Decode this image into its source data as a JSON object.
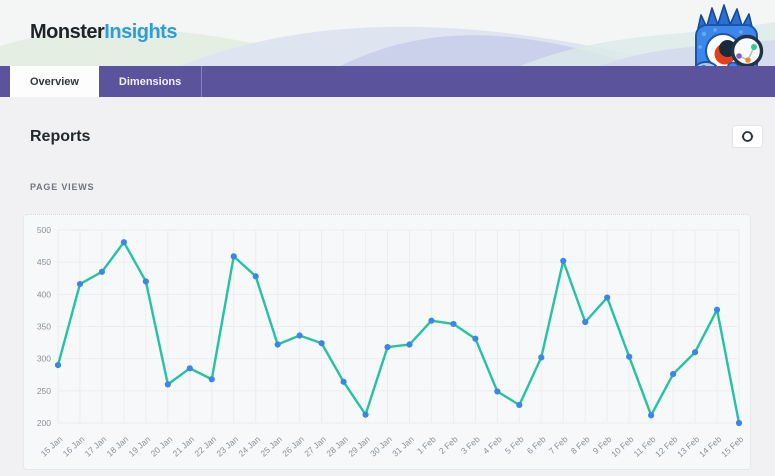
{
  "brand": {
    "name_primary": "Monster",
    "name_secondary": "Insights"
  },
  "nav": {
    "tabs": [
      {
        "label": "Overview",
        "active": true
      },
      {
        "label": "Dimensions",
        "active": false
      }
    ]
  },
  "page": {
    "title": "Reports"
  },
  "toolbar": {
    "refresh_icon": "refresh-circular-arrows"
  },
  "colors": {
    "nav_purple": "#5b539b",
    "logo_blue": "#2f9dd8",
    "line_teal": "#25c3a0",
    "point_blue": "#3a87e8",
    "grid_line": "#ebedef",
    "tick_text": "#8b919b"
  },
  "chart_data": {
    "type": "line",
    "title": "PAGE VIEWS",
    "xlabel": "",
    "ylabel": "",
    "legend": "none",
    "grid": true,
    "ylim": [
      200,
      500
    ],
    "ytick_step": 50,
    "categories": [
      "15 Jan",
      "16 Jan",
      "17 Jan",
      "18 Jan",
      "19 Jan",
      "20 Jan",
      "21 Jan",
      "22 Jan",
      "23 Jan",
      "24 Jan",
      "25 Jan",
      "26 Jan",
      "27 Jan",
      "28 Jan",
      "29 Jan",
      "30 Jan",
      "31 Jan",
      "1 Feb",
      "2 Feb",
      "3 Feb",
      "4 Feb",
      "5 Feb",
      "6 Feb",
      "7 Feb",
      "8 Feb",
      "9 Feb",
      "10 Feb",
      "11 Feb",
      "12 Feb",
      "13 Feb",
      "14 Feb",
      "15 Feb"
    ],
    "values": [
      290,
      416,
      435,
      481,
      420,
      260,
      285,
      268,
      459,
      428,
      322,
      336,
      324,
      264,
      213,
      318,
      322,
      359,
      354,
      331,
      249,
      228,
      302,
      452,
      357,
      395,
      303,
      212,
      276,
      310,
      376,
      200
    ]
  }
}
